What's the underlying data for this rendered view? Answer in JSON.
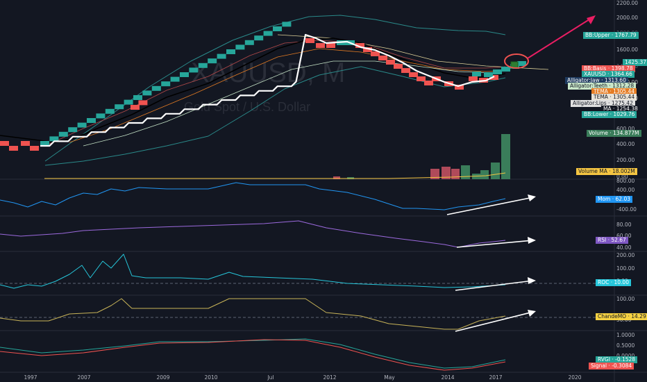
{
  "symbol": "XAUUSD",
  "interval": "M",
  "description": "Gold Spot / U.S. Dollar",
  "colors": {
    "background": "#131722",
    "bull": "#26a69a",
    "bear": "#ef5350",
    "highlight": "#ffffff",
    "ma": "#000000",
    "volume_ma": "#f5c542",
    "mom": "#2196f3",
    "rsi": "#9c6ade",
    "roc": "#26c6da",
    "cmo": "#c9b458",
    "rvgi": "#26a69a",
    "signal": "#ef5350",
    "arrow": "#e91e63"
  },
  "price_axis": {
    "ticks": [
      "2200.00",
      "2000.00",
      "1800.00",
      "1600.00",
      "1400.00",
      "1200.00",
      "1000.00",
      "800.00"
    ],
    "dim_ticks": [
      "1800.00",
      "1400.00"
    ]
  },
  "time_axis": [
    "1997",
    "2007",
    "2009",
    "2010",
    "Jul",
    "2012",
    "May",
    "2014",
    "2017",
    "2020"
  ],
  "price_labels": [
    {
      "text": "BB:Upper · 1767.79",
      "bg": "#26a69a",
      "fg": "#ffffff"
    },
    {
      "text": "1425.37",
      "bg": "#26a69a",
      "fg": "#ffffff"
    },
    {
      "text": "BB:Basis · 1398.78",
      "bg": "#ef5350",
      "fg": "#ffffff"
    },
    {
      "text": "XAUUSD · 1364.66",
      "bg": "#26a69a",
      "fg": "#ffffff"
    },
    {
      "text": "Alligator:Jaw · 1313.60",
      "bg": "#1e3a5f",
      "fg": "#ffffff"
    },
    {
      "text": "Alligator:Teeth · 1312.28",
      "bg": "#c8e6c9",
      "fg": "#131722"
    },
    {
      "text": "TEMA · 1305.44",
      "bg": "#e57c23",
      "fg": "#ffffff"
    },
    {
      "text": "TEMA · 1305.44",
      "bg": "#e8e3d8",
      "fg": "#131722"
    },
    {
      "text": "Alligator:Lips · 1275.42",
      "bg": "#e0e0e0",
      "fg": "#131722"
    },
    {
      "text": "MA · 1254.38",
      "bg": "#131722",
      "fg": "#ffffff"
    },
    {
      "text": "BB:Lower · 1029.76",
      "bg": "#26a69a",
      "fg": "#ffffff"
    }
  ],
  "volume": {
    "ticks": [
      "600.00",
      "400.00",
      "200.00",
      "0.00"
    ],
    "label": "Volume · 134.877M",
    "ma_label": "Volume MA · 18.002M"
  },
  "panes": [
    {
      "key": "mom",
      "name": "Mom",
      "value": "62.03",
      "ticks": [
        "800.00",
        "400.00",
        "0.00",
        "-400.00"
      ],
      "label": "Mom · 62.03",
      "badge_bg": "#2196f3",
      "badge_fg": "#ffffff"
    },
    {
      "key": "rsi",
      "name": "RSI",
      "value": "52.67",
      "ticks": [
        "80.00",
        "60.00",
        "40.00"
      ],
      "label": "RSI · 52.67",
      "badge_bg": "#7e57c2",
      "badge_fg": "#ffffff"
    },
    {
      "key": "roc",
      "name": "ROC",
      "value": "10.00",
      "ticks": [
        "200.00",
        "100.00",
        "0.00"
      ],
      "label": "ROC · 10.00",
      "badge_bg": "#26c6da",
      "badge_fg": "#ffffff"
    },
    {
      "key": "cmo",
      "name": "ChandeMO",
      "value": "14.29",
      "ticks": [
        "100.00",
        "50.00"
      ],
      "label": "ChandeMO · 14.29",
      "badge_bg": "#f5d142",
      "badge_fg": "#131722"
    },
    {
      "key": "rvgi",
      "name": "RVGI",
      "value": "-0.1528",
      "ticks": [
        "1.0000",
        "0.5000",
        "0.0000"
      ],
      "label": "RVGI · -0.1528",
      "badge_bg": "#26a69a",
      "badge_fg": "#ffffff",
      "label2": "Signal · -0.3084",
      "badge2_bg": "#ef5350"
    }
  ],
  "annotation": {
    "shape": "ellipse",
    "arrow": "up-right"
  }
}
